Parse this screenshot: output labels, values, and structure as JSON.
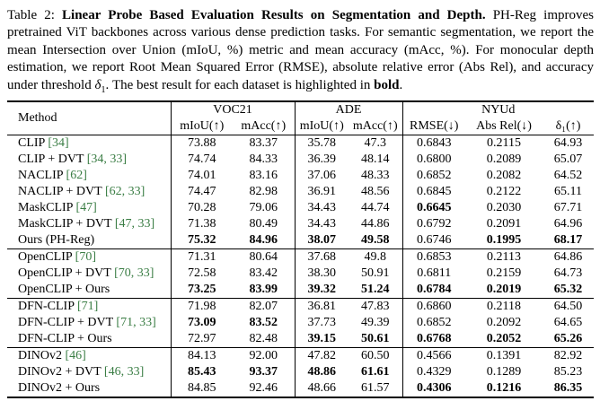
{
  "colors": {
    "citation": "#3a7d44",
    "text": "#000000",
    "background": "#ffffff",
    "rule": "#000000"
  },
  "caption": {
    "segments": [
      {
        "t": "Table 2: "
      },
      {
        "t": "Linear Probe Based Evaluation Results on Segmentation and Depth.",
        "b": true
      },
      {
        "t": " PH-Reg improves pretrained ViT backbones across various dense prediction tasks. For semantic segmentation, we report the mean Intersection over Union (mIoU, %) metric and mean accuracy (mAcc, %). For monocular depth estimation, we report Root Mean Squared Error (RMSE), absolute relative error (Abs Rel), and accuracy under threshold "
      },
      {
        "t": "δ",
        "i": true
      },
      {
        "t": "1",
        "sub": true
      },
      {
        "t": ". The best result for each dataset is highlighted in "
      },
      {
        "t": "bold",
        "b": true
      },
      {
        "t": "."
      }
    ]
  },
  "table": {
    "header": {
      "method": "Method",
      "groups": [
        {
          "label": "VOC21",
          "cols": [
            "mIoU(↑)",
            "mAcc(↑)"
          ]
        },
        {
          "label": "ADE",
          "cols": [
            "mIoU(↑)",
            "mAcc(↑)"
          ]
        },
        {
          "label": "NYUd",
          "cols": [
            "RMSE(↓)",
            "Abs Rel(↓)",
            "δ₁(↑)"
          ]
        }
      ]
    },
    "groups": [
      {
        "rows": [
          {
            "name": "CLIP ",
            "cite": "[34]",
            "cells": [
              {
                "v": "73.88"
              },
              {
                "v": "83.37"
              },
              {
                "v": "35.78"
              },
              {
                "v": "47.3"
              },
              {
                "v": "0.6843"
              },
              {
                "v": "0.2115"
              },
              {
                "v": "64.93"
              }
            ]
          },
          {
            "name": "CLIP + DVT ",
            "cite": "[34, 33]",
            "cells": [
              {
                "v": "74.74"
              },
              {
                "v": "84.33"
              },
              {
                "v": "36.39"
              },
              {
                "v": "48.14"
              },
              {
                "v": "0.6800"
              },
              {
                "v": "0.2089"
              },
              {
                "v": "65.07"
              }
            ]
          },
          {
            "name": "NACLIP ",
            "cite": "[62]",
            "cells": [
              {
                "v": "74.01"
              },
              {
                "v": "83.16"
              },
              {
                "v": "37.06"
              },
              {
                "v": "48.33"
              },
              {
                "v": "0.6852"
              },
              {
                "v": "0.2082"
              },
              {
                "v": "64.52"
              }
            ]
          },
          {
            "name": "NACLIP + DVT ",
            "cite": "[62, 33]",
            "cells": [
              {
                "v": "74.47"
              },
              {
                "v": "82.98"
              },
              {
                "v": "36.91"
              },
              {
                "v": "48.56"
              },
              {
                "v": "0.6845"
              },
              {
                "v": "0.2122"
              },
              {
                "v": "65.11"
              }
            ]
          },
          {
            "name": "MaskCLIP ",
            "cite": "[47]",
            "cells": [
              {
                "v": "70.28"
              },
              {
                "v": "79.06"
              },
              {
                "v": "34.43"
              },
              {
                "v": "44.74"
              },
              {
                "v": "0.6645",
                "b": true
              },
              {
                "v": "0.2030"
              },
              {
                "v": "67.71"
              }
            ]
          },
          {
            "name": "MaskCLIP + DVT ",
            "cite": "[47, 33]",
            "cells": [
              {
                "v": "71.38"
              },
              {
                "v": "80.49"
              },
              {
                "v": "34.43"
              },
              {
                "v": "44.86"
              },
              {
                "v": "0.6792"
              },
              {
                "v": "0.2091"
              },
              {
                "v": "64.96"
              }
            ]
          },
          {
            "name": "Ours (PH-Reg)",
            "cite": "",
            "cells": [
              {
                "v": "75.32",
                "b": true
              },
              {
                "v": "84.96",
                "b": true
              },
              {
                "v": "38.07",
                "b": true
              },
              {
                "v": "49.58",
                "b": true
              },
              {
                "v": "0.6746"
              },
              {
                "v": "0.1995",
                "b": true
              },
              {
                "v": "68.17",
                "b": true
              }
            ]
          }
        ]
      },
      {
        "rows": [
          {
            "name": "OpenCLIP ",
            "cite": "[70]",
            "cells": [
              {
                "v": "71.31"
              },
              {
                "v": "80.64"
              },
              {
                "v": "37.68"
              },
              {
                "v": "49.8"
              },
              {
                "v": "0.6853"
              },
              {
                "v": "0.2113"
              },
              {
                "v": "64.86"
              }
            ]
          },
          {
            "name": "OpenCLIP + DVT ",
            "cite": "[70, 33]",
            "cells": [
              {
                "v": "72.58"
              },
              {
                "v": "83.42"
              },
              {
                "v": "38.30"
              },
              {
                "v": "50.91"
              },
              {
                "v": "0.6811"
              },
              {
                "v": "0.2159"
              },
              {
                "v": "64.73"
              }
            ]
          },
          {
            "name": "OpenCLIP + Ours",
            "cite": "",
            "cells": [
              {
                "v": "73.25",
                "b": true
              },
              {
                "v": "83.99",
                "b": true
              },
              {
                "v": "39.32",
                "b": true
              },
              {
                "v": "51.24",
                "b": true
              },
              {
                "v": "0.6784",
                "b": true
              },
              {
                "v": "0.2019",
                "b": true
              },
              {
                "v": "65.32",
                "b": true
              }
            ]
          }
        ]
      },
      {
        "rows": [
          {
            "name": "DFN-CLIP ",
            "cite": "[71]",
            "cells": [
              {
                "v": "71.98"
              },
              {
                "v": "82.07"
              },
              {
                "v": "36.81"
              },
              {
                "v": "47.83"
              },
              {
                "v": "0.6860"
              },
              {
                "v": "0.2118"
              },
              {
                "v": "64.50"
              }
            ]
          },
          {
            "name": "DFN-CLIP + DVT ",
            "cite": "[71, 33]",
            "cells": [
              {
                "v": "73.09",
                "b": true
              },
              {
                "v": "83.52",
                "b": true
              },
              {
                "v": "37.73"
              },
              {
                "v": "49.39"
              },
              {
                "v": "0.6852"
              },
              {
                "v": "0.2092"
              },
              {
                "v": "64.65"
              }
            ]
          },
          {
            "name": "DFN-CLIP + Ours",
            "cite": "",
            "cells": [
              {
                "v": "72.97"
              },
              {
                "v": "82.48"
              },
              {
                "v": "39.15",
                "b": true
              },
              {
                "v": "50.61",
                "b": true
              },
              {
                "v": "0.6768",
                "b": true
              },
              {
                "v": "0.2052",
                "b": true
              },
              {
                "v": "65.26",
                "b": true
              }
            ]
          }
        ]
      },
      {
        "rows": [
          {
            "name": "DINOv2 ",
            "cite": "[46]",
            "cells": [
              {
                "v": "84.13"
              },
              {
                "v": "92.00"
              },
              {
                "v": "47.82"
              },
              {
                "v": "60.50"
              },
              {
                "v": "0.4566"
              },
              {
                "v": "0.1391"
              },
              {
                "v": "82.92"
              }
            ]
          },
          {
            "name": "DINOv2 + DVT ",
            "cite": "[46, 33]",
            "cells": [
              {
                "v": "85.43",
                "b": true
              },
              {
                "v": "93.37",
                "b": true
              },
              {
                "v": "48.86",
                "b": true
              },
              {
                "v": "61.61",
                "b": true
              },
              {
                "v": "0.4329"
              },
              {
                "v": "0.1289"
              },
              {
                "v": "85.23"
              }
            ]
          },
          {
            "name": "DINOv2 + Ours",
            "cite": "",
            "cells": [
              {
                "v": "84.85"
              },
              {
                "v": "92.46"
              },
              {
                "v": "48.66"
              },
              {
                "v": "61.57"
              },
              {
                "v": "0.4306",
                "b": true
              },
              {
                "v": "0.1216",
                "b": true
              },
              {
                "v": "86.35",
                "b": true
              }
            ]
          }
        ]
      }
    ]
  }
}
